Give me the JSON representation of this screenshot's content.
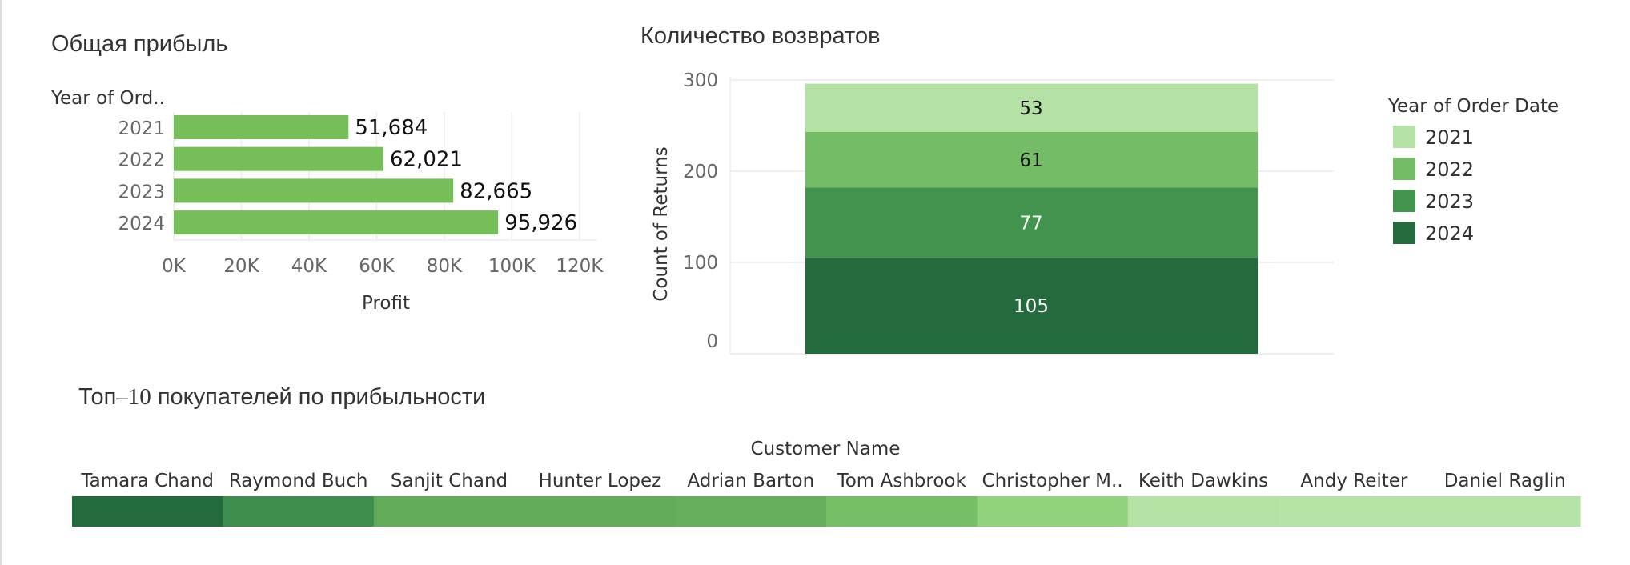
{
  "chart_data": [
    {
      "type": "bar",
      "orientation": "horizontal",
      "title": "Общая прибыль",
      "row_header": "Year of Ord..",
      "categories": [
        "2021",
        "2022",
        "2023",
        "2024"
      ],
      "values": [
        51684,
        62021,
        82665,
        95926
      ],
      "value_labels": [
        "51,684",
        "62,021",
        "82,665",
        "95,926"
      ],
      "xlabel": "Profit",
      "xticks": [
        "0K",
        "20K",
        "40K",
        "60K",
        "80K",
        "100K",
        "120K"
      ],
      "xlim": [
        0,
        125000
      ],
      "color": "#76bf58"
    },
    {
      "type": "bar",
      "stacked": true,
      "title": "Количество возвратов",
      "ylabel": "Count of Returns",
      "yticks": [
        "0",
        "100",
        "200",
        "300"
      ],
      "ylim": [
        0,
        300
      ],
      "series": [
        {
          "name": "2024",
          "value": 105,
          "color": "#236a3c",
          "label_color": "#ffffff"
        },
        {
          "name": "2023",
          "value": 77,
          "color": "#42934e",
          "label_color": "#ffffff"
        },
        {
          "name": "2022",
          "value": 61,
          "color": "#74bc65",
          "label_color": "#111111"
        },
        {
          "name": "2021",
          "value": 53,
          "color": "#b4e1a4",
          "label_color": "#111111"
        }
      ],
      "legend": {
        "title": "Year of Order Date",
        "position": "right",
        "items": [
          {
            "label": "2021",
            "color": "#b4e1a4"
          },
          {
            "label": "2022",
            "color": "#74bc65"
          },
          {
            "label": "2023",
            "color": "#42934e"
          },
          {
            "label": "2024",
            "color": "#236a3c"
          }
        ]
      }
    },
    {
      "type": "heatmap",
      "title_main": "Топ",
      "title_num": "–10",
      "title_rest": " покупателей по прибыльности",
      "header": "Customer Name",
      "categories": [
        "Tamara Chand",
        "Raymond Buch",
        "Sanjit Chand",
        "Hunter Lopez",
        "Adrian Barton",
        "Tom Ashbrook",
        "Christopher M..",
        "Keith Dawkins",
        "Andy Reiter",
        "Daniel Raglin"
      ],
      "colors": [
        "#236a3c",
        "#3d8e4c",
        "#62ab58",
        "#62ab58",
        "#67af5c",
        "#77bf67",
        "#90d27e",
        "#b4e1a4",
        "#b6e3a6",
        "#b6e3a6"
      ]
    }
  ]
}
